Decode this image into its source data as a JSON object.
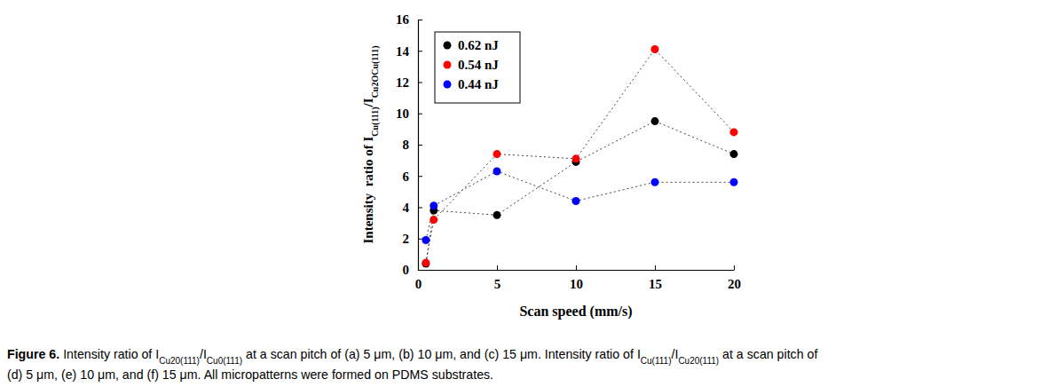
{
  "chart_data": {
    "type": "line",
    "x_label": "Scan speed (mm/s)",
    "y_label": [
      "Intensity  ratio of I",
      "Cu(111)",
      "/I",
      "Cu2OCu(111)"
    ],
    "x": [
      0.5,
      1,
      5,
      10,
      15,
      20
    ],
    "series": [
      {
        "name": "0.62 nJ",
        "color": "#000000",
        "marker": "circle",
        "line_style": "dotted",
        "values": [
          0.4,
          3.8,
          3.5,
          6.9,
          9.5,
          7.4
        ]
      },
      {
        "name": "0.54 nJ",
        "color": "#ff0000",
        "marker": "circle",
        "line_style": "dotted",
        "values": [
          0.45,
          3.2,
          7.4,
          7.1,
          14.1,
          8.8
        ]
      },
      {
        "name": "0.44 nJ",
        "color": "#0000ff",
        "marker": "circle",
        "line_style": "dotted",
        "values": [
          1.9,
          4.1,
          6.3,
          4.4,
          5.6,
          5.6
        ]
      }
    ],
    "xlim": [
      0,
      20
    ],
    "xticks": [
      0,
      5,
      10,
      15,
      20
    ],
    "ylim": [
      0,
      16
    ],
    "yticks": [
      0,
      2,
      4,
      6,
      8,
      10,
      12,
      14,
      16
    ],
    "grid": false,
    "legend": "upper left",
    "caption": {
      "label": "Figure 6.",
      "lines": [
        [
          "Intensity ratio of I",
          "Cu20(111)",
          "/I",
          "Cu0(111)",
          " at a scan pitch of (a) 5 μm, (b) 10 μm, and (c) 15 μm. Intensity ratio of I",
          "Cu(111)",
          "/I",
          "Cu20(111)",
          " at a scan pitch of"
        ],
        [
          "(d) 5 μm, (e) 10 μm, and (f) 15 μm. All micropatterns were formed on PDMS substrates."
        ]
      ]
    }
  }
}
